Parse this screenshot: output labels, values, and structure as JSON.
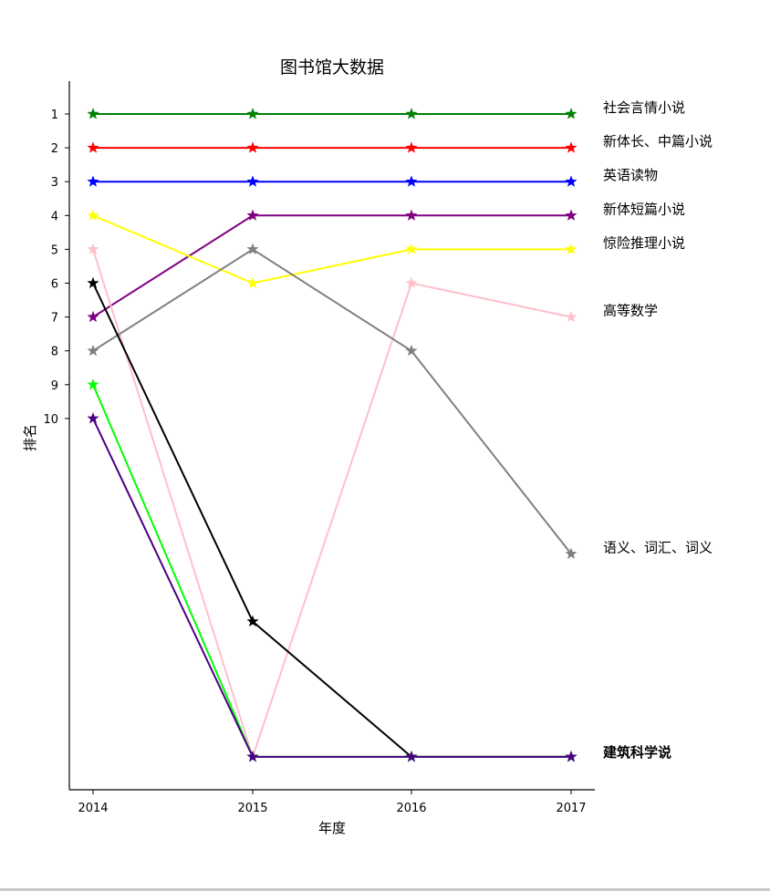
{
  "chart_data": {
    "type": "line",
    "title": "图书馆大数据",
    "xlabel": "年度",
    "ylabel": "排名",
    "x": [
      "2014",
      "2015",
      "2016",
      "2017"
    ],
    "y_ticks": [
      1,
      2,
      3,
      4,
      5,
      6,
      7,
      8,
      9,
      10
    ],
    "ylim": [
      20.5,
      0
    ],
    "marker": "star",
    "series": [
      {
        "name": "社会言情小说",
        "color": "#008000",
        "values": [
          1,
          1,
          1,
          1
        ]
      },
      {
        "name": "新体长、中篇小说",
        "color": "#ff0000",
        "values": [
          2,
          2,
          2,
          2
        ]
      },
      {
        "name": "英语读物",
        "color": "#0000ff",
        "values": [
          3,
          3,
          3,
          3
        ]
      },
      {
        "name": "新体短篇小说",
        "color": "#800080",
        "values": [
          7,
          4,
          4,
          4
        ]
      },
      {
        "name": "惊险推理小说",
        "color": "#ffff00",
        "values": [
          4,
          6,
          5,
          5
        ]
      },
      {
        "name": "高等数学",
        "color": "#ffc0cb",
        "values": [
          5,
          20,
          6,
          7
        ]
      },
      {
        "name": "语义、词汇、词义",
        "color": "#808080",
        "values": [
          8,
          5,
          8,
          14
        ]
      },
      {
        "name": "",
        "color": "#000000",
        "values": [
          6,
          16,
          20,
          20
        ]
      },
      {
        "name": "",
        "color": "#00ff00",
        "values": [
          9,
          20,
          20,
          20
        ]
      },
      {
        "name": "",
        "color": "#4b0082",
        "values": [
          10,
          20,
          20,
          20
        ]
      }
    ],
    "overlapped_labels_text": "建筑科学说"
  }
}
